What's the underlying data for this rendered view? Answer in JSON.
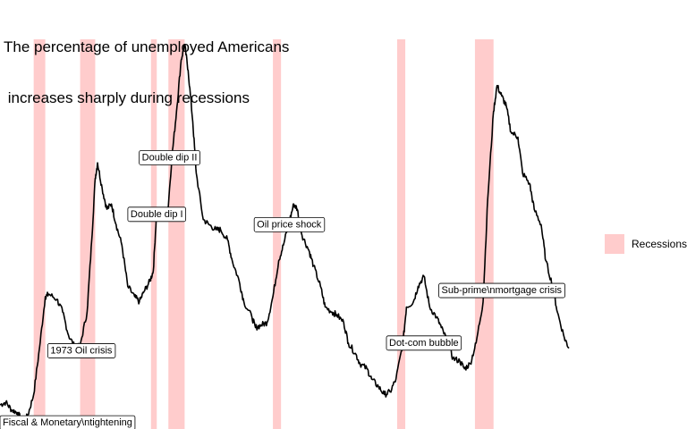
{
  "chart_data": {
    "type": "line",
    "title_lines": [
      "The percentage of unemployed Americans",
      " increases sharply during recessions"
    ],
    "xlabel": "",
    "ylabel": "",
    "grid": false,
    "legend_position": "right",
    "x_range": [
      1967.0,
      2016.3
    ],
    "y_range": [
      3.33,
      10.9
    ],
    "series": [
      {
        "color": "#000000",
        "x": [
          1967.0,
          1967.5,
          1968.0,
          1968.5,
          1969.0,
          1969.4,
          1969.9,
          1970.4,
          1970.9,
          1971.2,
          1971.9,
          1972.4,
          1972.9,
          1973.5,
          1973.9,
          1974.5,
          1974.9,
          1975.2,
          1975.4,
          1975.8,
          1976.2,
          1976.6,
          1977.0,
          1977.5,
          1978.0,
          1978.6,
          1979.0,
          1979.4,
          1979.9,
          1980.2,
          1980.5,
          1981.0,
          1981.4,
          1981.8,
          1982.2,
          1982.6,
          1982.9,
          1983.2,
          1983.6,
          1983.9,
          1984.5,
          1985.0,
          1985.6,
          1986.0,
          1986.6,
          1987.0,
          1987.6,
          1988.0,
          1988.7,
          1989.0,
          1989.5,
          1990.0,
          1990.5,
          1991.0,
          1991.4,
          1991.9,
          1992.3,
          1992.6,
          1993.0,
          1993.6,
          1994.0,
          1994.6,
          1995.0,
          1995.6,
          1996.0,
          1996.6,
          1997.0,
          1997.6,
          1998.0,
          1998.6,
          1999.0,
          1999.6,
          2000.1,
          2000.6,
          2001.1,
          2001.7,
          2002.0,
          2002.6,
          2003.0,
          2003.5,
          2004.0,
          2004.6,
          2005.0,
          2005.6,
          2006.0,
          2006.6,
          2007.0,
          2007.5,
          2008.0,
          2008.6,
          2009.0,
          2009.5,
          2009.8,
          2010.2,
          2010.6,
          2011.0,
          2011.6,
          2012.0,
          2012.6,
          2013.0,
          2013.6,
          2014.0,
          2014.6,
          2015.0,
          2015.6,
          2016.0
        ],
        "y": [
          3.8,
          3.85,
          3.7,
          3.65,
          3.45,
          3.6,
          4.0,
          4.9,
          5.9,
          5.95,
          5.85,
          5.6,
          5.15,
          4.9,
          4.95,
          5.6,
          7.0,
          8.2,
          8.5,
          8.0,
          7.6,
          7.7,
          7.3,
          6.9,
          6.1,
          5.9,
          5.8,
          6.0,
          6.2,
          6.4,
          7.6,
          7.5,
          7.4,
          8.6,
          9.5,
          10.5,
          10.8,
          10.3,
          9.3,
          8.3,
          7.4,
          7.3,
          7.2,
          7.2,
          7.0,
          6.6,
          6.2,
          5.8,
          5.5,
          5.3,
          5.35,
          5.4,
          5.9,
          6.6,
          6.9,
          7.35,
          7.7,
          7.6,
          7.1,
          6.8,
          6.5,
          6.1,
          5.7,
          5.6,
          5.55,
          5.4,
          5.0,
          4.8,
          4.6,
          4.5,
          4.3,
          4.15,
          4.0,
          4.05,
          4.3,
          5.0,
          5.7,
          5.8,
          6.1,
          6.3,
          5.7,
          5.5,
          5.3,
          5.0,
          4.7,
          4.65,
          4.5,
          4.6,
          5.0,
          5.8,
          7.8,
          9.5,
          10.0,
          9.8,
          9.6,
          9.1,
          9.0,
          8.3,
          8.1,
          7.6,
          7.3,
          6.6,
          6.1,
          5.6,
          5.1,
          4.9
        ]
      }
    ],
    "recessions": [
      {
        "start": 1969.9,
        "end": 1970.9
      },
      {
        "start": 1973.9,
        "end": 1975.2
      },
      {
        "start": 1980.0,
        "end": 1980.5
      },
      {
        "start": 1981.5,
        "end": 1982.9
      },
      {
        "start": 1990.5,
        "end": 1991.2
      },
      {
        "start": 2001.2,
        "end": 2001.9
      },
      {
        "start": 2007.9,
        "end": 2009.5
      }
    ],
    "annotations": [
      {
        "label": "Fiscal & Monetary\\ntightening",
        "x": 1969.0,
        "y": 3.45
      },
      {
        "label": "1973 Oil crisis",
        "x": 1974.0,
        "y": 4.85
      },
      {
        "label": "Double dip I",
        "x": 1980.5,
        "y": 7.5
      },
      {
        "label": "Double dip II",
        "x": 1981.6,
        "y": 8.6
      },
      {
        "label": "Oil price shock",
        "x": 1991.9,
        "y": 7.3
      },
      {
        "label": "Dot-com bubble",
        "x": 2003.5,
        "y": 5.0
      },
      {
        "label": "Sub-prime\\nmortgage crisis",
        "x": 2010.2,
        "y": 6.02
      }
    ],
    "legend": {
      "label": "Recessions",
      "color": "#ffcccc"
    },
    "line_color": "#000000",
    "recession_color": "#ffcccc"
  }
}
